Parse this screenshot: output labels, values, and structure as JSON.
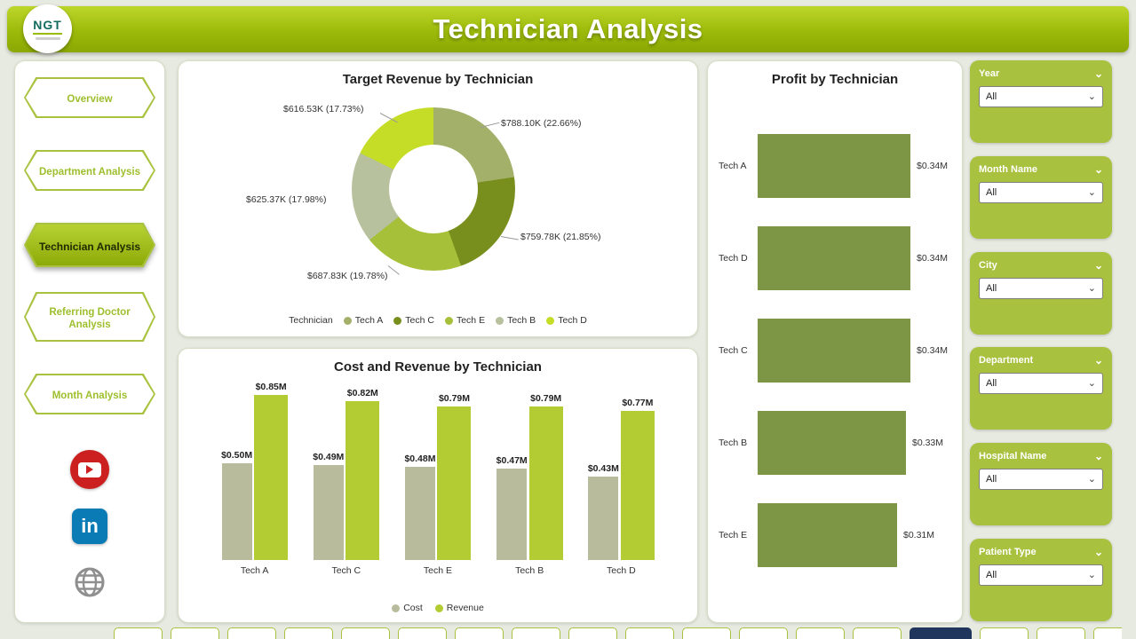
{
  "header": {
    "title": "Technician Analysis",
    "logo_text": "NGT"
  },
  "sidebar": {
    "items": [
      {
        "label": "Overview",
        "active": false
      },
      {
        "label": "Department Analysis",
        "active": false
      },
      {
        "label": "Technician Analysis",
        "active": true
      },
      {
        "label": "Referring Doctor Analysis",
        "active": false
      },
      {
        "label": "Month Analysis",
        "active": false
      }
    ],
    "social": {
      "youtube": "YouTube",
      "linkedin_text": "in",
      "web": "Website"
    }
  },
  "slicers": [
    {
      "label": "Year",
      "value": "All"
    },
    {
      "label": "Month Name",
      "value": "All"
    },
    {
      "label": "City",
      "value": "All"
    },
    {
      "label": "Department",
      "value": "All"
    },
    {
      "label": "Hospital Name",
      "value": "All"
    },
    {
      "label": "Patient Type",
      "value": "All"
    }
  ],
  "chart_data": [
    {
      "type": "pie",
      "title": "Target Revenue by Technician",
      "legend_title": "Technician",
      "slices": [
        {
          "name": "Tech A",
          "value_k": 788.1,
          "pct": 22.66,
          "value_label": "$788.10K (22.66%)",
          "color": "#a3b069"
        },
        {
          "name": "Tech C",
          "value_k": 759.78,
          "pct": 21.85,
          "value_label": "$759.78K (21.85%)",
          "color": "#788f1e"
        },
        {
          "name": "Tech E",
          "value_k": 687.83,
          "pct": 19.78,
          "value_label": "$687.83K (19.78%)",
          "color": "#a7c03a"
        },
        {
          "name": "Tech B",
          "value_k": 625.37,
          "pct": 17.98,
          "value_label": "$625.37K (17.98%)",
          "color": "#b8c19e"
        },
        {
          "name": "Tech D",
          "value_k": 616.53,
          "pct": 17.73,
          "value_label": "$616.53K (17.73%)",
          "color": "#c5dd27"
        }
      ]
    },
    {
      "type": "bar",
      "title": "Cost and Revenue by Technician",
      "categories": [
        "Tech A",
        "Tech C",
        "Tech E",
        "Tech B",
        "Tech D"
      ],
      "ylim": [
        0,
        0.9
      ],
      "series": [
        {
          "name": "Cost",
          "color": "#b8bc9c",
          "values": [
            0.5,
            0.49,
            0.48,
            0.47,
            0.43
          ],
          "labels": [
            "$0.50M",
            "$0.49M",
            "$0.48M",
            "$0.47M",
            "$0.43M"
          ]
        },
        {
          "name": "Revenue",
          "color": "#b4cc33",
          "values": [
            0.85,
            0.82,
            0.79,
            0.79,
            0.77
          ],
          "labels": [
            "$0.85M",
            "$0.82M",
            "$0.79M",
            "$0.79M",
            "$0.77M"
          ]
        }
      ],
      "legend_position": "bottom"
    },
    {
      "type": "bar",
      "orientation": "horizontal",
      "title": "Profit by Technician",
      "categories": [
        "Tech A",
        "Tech D",
        "Tech C",
        "Tech B",
        "Tech E"
      ],
      "values": [
        0.34,
        0.34,
        0.34,
        0.33,
        0.31
      ],
      "labels": [
        "$0.34M",
        "$0.34M",
        "$0.34M",
        "$0.33M",
        "$0.31M"
      ],
      "xlim": [
        0,
        0.34
      ],
      "color": "#7d9645"
    }
  ]
}
